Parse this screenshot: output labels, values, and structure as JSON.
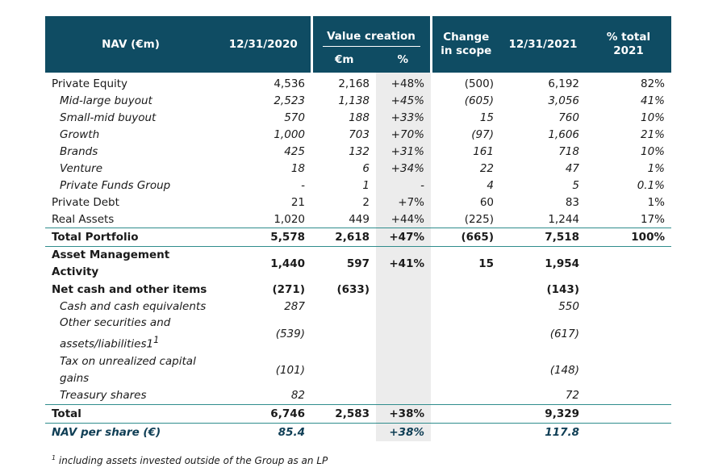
{
  "header": {
    "nav": "NAV (€m)",
    "d2020": "12/31/2020",
    "value_creation": "Value creation",
    "em": "€m",
    "pct": "%",
    "change_scope_1": "Change",
    "change_scope_2": "in scope",
    "d2021": "12/31/2021",
    "total_1": "% total",
    "total_2": "2021"
  },
  "rows": [
    {
      "label": "Private Equity",
      "v2020": "4,536",
      "em": "2,168",
      "pct": "+48%",
      "scope": "(500)",
      "v2021": "6,192",
      "total": "82%"
    },
    {
      "label": "Mid-large buyout",
      "v2020": "2,523",
      "em": "1,138",
      "pct": "+45%",
      "scope": "(605)",
      "v2021": "3,056",
      "total": "41%"
    },
    {
      "label": "Small-mid buyout",
      "v2020": "570",
      "em": "188",
      "pct": "+33%",
      "scope": "15",
      "v2021": "760",
      "total": "10%"
    },
    {
      "label": "Growth",
      "v2020": "1,000",
      "em": "703",
      "pct": "+70%",
      "scope": "(97)",
      "v2021": "1,606",
      "total": "21%"
    },
    {
      "label": "Brands",
      "v2020": "425",
      "em": "132",
      "pct": "+31%",
      "scope": "161",
      "v2021": "718",
      "total": "10%"
    },
    {
      "label": "Venture",
      "v2020": "18",
      "em": "6",
      "pct": "+34%",
      "scope": "22",
      "v2021": "47",
      "total": "1%"
    },
    {
      "label": "Private Funds Group",
      "v2020": "-",
      "em": "1",
      "pct": "-",
      "scope": "4",
      "v2021": "5",
      "total": "0.1%"
    },
    {
      "label": "Private Debt",
      "v2020": "21",
      "em": "2",
      "pct": "+7%",
      "scope": "60",
      "v2021": "83",
      "total": "1%"
    },
    {
      "label": "Real Assets",
      "v2020": "1,020",
      "em": "449",
      "pct": "+44%",
      "scope": "(225)",
      "v2021": "1,244",
      "total": "17%"
    },
    {
      "label": "Total Portfolio",
      "v2020": "5,578",
      "em": "2,618",
      "pct": "+47%",
      "scope": "(665)",
      "v2021": "7,518",
      "total": "100%"
    },
    {
      "label": "Asset Management Activity",
      "v2020": "1,440",
      "em": "597",
      "pct": "+41%",
      "scope": "15",
      "v2021": "1,954",
      "total": ""
    },
    {
      "label": "Net cash and other items",
      "v2020": "(271)",
      "em": "(633)",
      "pct": "",
      "scope": "",
      "v2021": "(143)",
      "total": ""
    },
    {
      "label": "Cash and cash equivalents",
      "v2020": "287",
      "em": "",
      "pct": "",
      "scope": "",
      "v2021": "550",
      "total": ""
    },
    {
      "label": "Other securities and assets/liabilities1",
      "sup": "1",
      "v2020": "(539)",
      "em": "",
      "pct": "",
      "scope": "",
      "v2021": "(617)",
      "total": ""
    },
    {
      "label": "Tax on unrealized capital gains",
      "v2020": "(101)",
      "em": "",
      "pct": "",
      "scope": "",
      "v2021": "(148)",
      "total": ""
    },
    {
      "label": "Treasury shares",
      "v2020": "82",
      "em": "",
      "pct": "",
      "scope": "",
      "v2021": "72",
      "total": ""
    },
    {
      "label": "Total",
      "v2020": "6,746",
      "em": "2,583",
      "pct": "+38%",
      "scope": "",
      "v2021": "9,329",
      "total": ""
    },
    {
      "label": "NAV per share (€)",
      "v2020": "85.4",
      "em": "",
      "pct": "+38%",
      "scope": "",
      "v2021": "117.8",
      "total": ""
    }
  ],
  "footnote": {
    "mark": "1",
    "text": " including assets invested outside of the Group as an LP"
  },
  "colors": {
    "header_bg": "#0f4c63",
    "rule": "#2f8c8c",
    "pct_shade": "#ececec",
    "nav_text": "#0f3e55"
  }
}
